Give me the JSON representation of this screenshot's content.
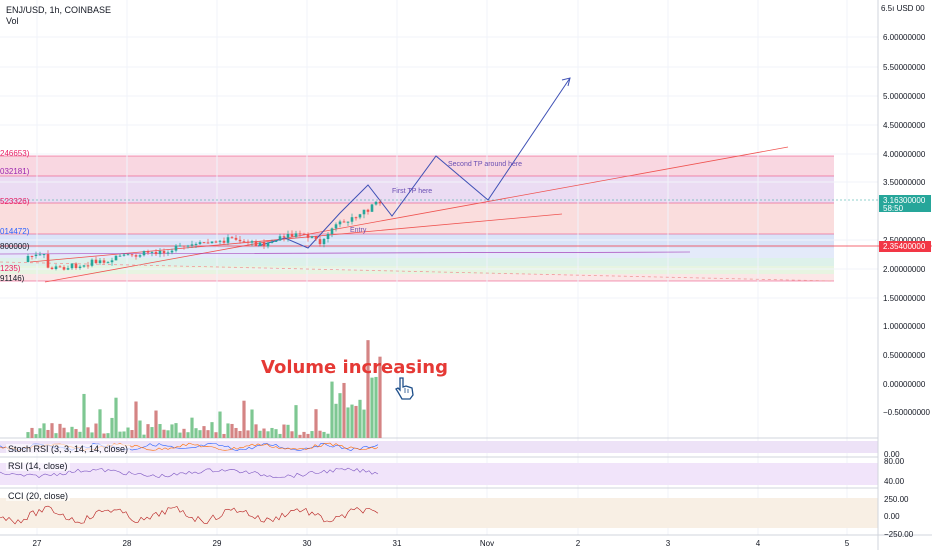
{
  "header": {
    "symbol": "ENJ/USD, 1h, COINBASE",
    "volume_label": "Vol"
  },
  "price_axis": {
    "top_label": "6.5ı USD 00",
    "ticks": [
      "6.00000000",
      "5.50000000",
      "5.00000000",
      "4.50000000",
      "4.00000000",
      "3.50000000",
      "2.50000000",
      "2.00000000",
      "1.50000000"
    ],
    "current_price": "3.16300000",
    "countdown": "58:50",
    "line_price": "2.35400000",
    "colors": {
      "up": "#26a69a",
      "down": "#ef5350",
      "line_badge": "#f23645"
    }
  },
  "volume_axis": {
    "ticks": [
      "1.00000000",
      "0.50000000",
      "0.00000000",
      "−0.50000000"
    ]
  },
  "level_labels": [
    "246653)",
    "032181)",
    "523326)",
    "014472)",
    "800000)",
    "1235)",
    "91146)"
  ],
  "indicators": {
    "stoch": {
      "label": "Stoch RSI (3, 3, 14, 14, close)",
      "ticks": [
        "0.00"
      ]
    },
    "rsi": {
      "label": "RSI (14, close)",
      "ticks": [
        "80.00",
        "40.00"
      ]
    },
    "cci": {
      "label": "CCI (20, close)",
      "ticks": [
        "250.00",
        "0.00",
        "−250.00"
      ]
    }
  },
  "time_axis": {
    "ticks": [
      "27",
      "28",
      "29",
      "30",
      "31",
      "Nov",
      "2",
      "3",
      "4",
      "5"
    ]
  },
  "annotations": {
    "volume_text": "Volume increasing",
    "hand_icon": "pointing-hand-icon",
    "first_tp": "First TP here",
    "second_tp": "Second TP around here",
    "entry": "Entry"
  },
  "chart_data": {
    "type": "candlestick",
    "title": "ENJ/USD, 1h, COINBASE",
    "ylim": [
      1.0,
      6.5
    ],
    "x_categories": [
      "27",
      "28",
      "29",
      "30",
      "31",
      "Nov",
      "2",
      "3",
      "4",
      "5"
    ],
    "current_price": 3.163,
    "horizontal_line": 2.354,
    "projection_path": [
      [
        31.0,
        2.8
      ],
      [
        31.4,
        3.95
      ],
      [
        31.9,
        3.2
      ],
      [
        32.9,
        5.3
      ]
    ]
  }
}
